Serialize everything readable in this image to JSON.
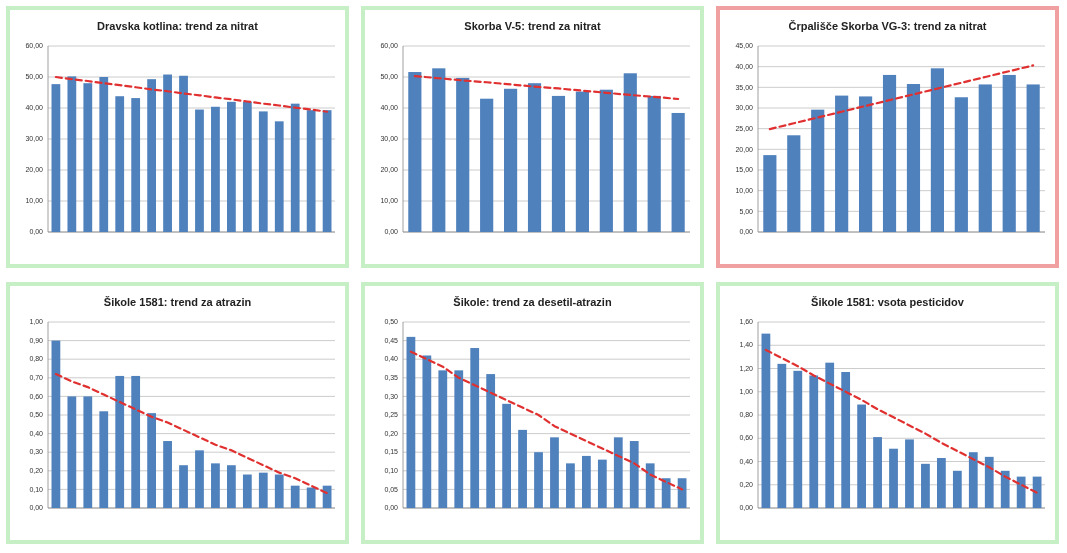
{
  "chart_data": [
    {
      "type": "bar",
      "title": "Dravska kotlina: trend za nitrat",
      "categories": [
        null,
        null,
        null,
        null,
        null,
        null,
        null,
        null,
        null,
        null,
        null,
        null,
        null,
        null,
        null,
        null,
        null,
        null
      ],
      "series": [
        {
          "color": "#4f81bd",
          "values": [
            47.7,
            50.2,
            48.0,
            50.0,
            43.8,
            43.2,
            49.3,
            50.8,
            50.4,
            39.5,
            40.4,
            42.0,
            42.0,
            38.9,
            35.7,
            41.4,
            39.3,
            39.3
          ]
        },
        {
          "type": "line",
          "color": "#e03030",
          "line_style": "dashed",
          "values": [
            50.0,
            49.3,
            48.7,
            48.0,
            47.4,
            46.7,
            46.0,
            45.4,
            44.7,
            44.1,
            43.4,
            42.8,
            42.1,
            41.4,
            40.8,
            40.1,
            39.5,
            38.8
          ]
        }
      ],
      "ylim": [
        0,
        60
      ],
      "yticks": [
        {
          "value": 0,
          "label": "0,00"
        },
        {
          "value": 10,
          "label": "10,00"
        },
        {
          "value": 20,
          "label": "20,00"
        },
        {
          "value": 30,
          "label": "30,00"
        },
        {
          "value": 40,
          "label": "40,00"
        },
        {
          "value": 50,
          "label": "50,00"
        },
        {
          "value": 60,
          "label": "60,00"
        }
      ],
      "grid": "y"
    },
    {
      "type": "bar",
      "title": "Skorba V-5: trend za nitrat",
      "categories": [
        null,
        null,
        null,
        null,
        null,
        null,
        null,
        null,
        null,
        null,
        null,
        null
      ],
      "series": [
        {
          "color": "#4f81bd",
          "values": [
            51.6,
            52.8,
            49.7,
            43.0,
            46.2,
            48.0,
            43.9,
            45.3,
            45.9,
            51.2,
            43.9,
            38.4
          ]
        },
        {
          "type": "line",
          "color": "#e03030",
          "line_style": "dashed",
          "values": [
            50.3,
            49.6,
            48.9,
            48.3,
            47.6,
            46.9,
            46.3,
            45.6,
            44.9,
            44.2,
            43.6,
            42.9
          ]
        }
      ],
      "ylim": [
        0,
        60
      ],
      "yticks": [
        {
          "value": 0,
          "label": "0,00"
        },
        {
          "value": 10,
          "label": "10,00"
        },
        {
          "value": 20,
          "label": "20,00"
        },
        {
          "value": 30,
          "label": "30,00"
        },
        {
          "value": 40,
          "label": "40,00"
        },
        {
          "value": 50,
          "label": "50,00"
        },
        {
          "value": 60,
          "label": "60,00"
        }
      ],
      "grid": "y"
    },
    {
      "type": "bar",
      "title": "Črpališče Skorba VG-3: trend za nitrat",
      "categories": [
        null,
        null,
        null,
        null,
        null,
        null,
        null,
        null,
        null,
        null,
        null,
        null
      ],
      "series": [
        {
          "color": "#4f81bd",
          "values": [
            18.6,
            23.4,
            29.6,
            33.0,
            32.8,
            38.0,
            35.8,
            39.6,
            32.6,
            35.7,
            38.0,
            35.7
          ]
        },
        {
          "type": "line",
          "color": "#e03030",
          "line_style": "dashed",
          "values": [
            24.9,
            26.3,
            27.7,
            29.1,
            30.5,
            31.9,
            33.3,
            34.7,
            36.1,
            37.5,
            38.9,
            40.3
          ]
        }
      ],
      "ylim": [
        0,
        45
      ],
      "yticks": [
        {
          "value": 0,
          "label": "0,00"
        },
        {
          "value": 5,
          "label": "5,00"
        },
        {
          "value": 10,
          "label": "10,00"
        },
        {
          "value": 15,
          "label": "15,00"
        },
        {
          "value": 20,
          "label": "20,00"
        },
        {
          "value": 25,
          "label": "25,00"
        },
        {
          "value": 30,
          "label": "30,00"
        },
        {
          "value": 35,
          "label": "35,00"
        },
        {
          "value": 40,
          "label": "40,00"
        },
        {
          "value": 45,
          "label": "45,00"
        }
      ],
      "grid": "y"
    },
    {
      "type": "bar",
      "title": "Šikole 1581: trend za atrazin",
      "categories": [
        null,
        null,
        null,
        null,
        null,
        null,
        null,
        null,
        null,
        null,
        null,
        null,
        null,
        null,
        null,
        null,
        null,
        null
      ],
      "series": [
        {
          "color": "#4f81bd",
          "values": [
            0.9,
            0.6,
            0.6,
            0.52,
            0.71,
            0.71,
            0.51,
            0.36,
            0.23,
            0.31,
            0.24,
            0.23,
            0.18,
            0.19,
            0.18,
            0.12,
            0.11,
            0.12
          ]
        },
        {
          "type": "line",
          "color": "#e03030",
          "line_style": "dashed",
          "values": [
            0.72,
            0.68,
            0.65,
            0.61,
            0.57,
            0.53,
            0.49,
            0.46,
            0.42,
            0.38,
            0.34,
            0.31,
            0.27,
            0.23,
            0.19,
            0.16,
            0.12,
            0.08
          ]
        }
      ],
      "ylim": [
        0,
        1
      ],
      "yticks": [
        {
          "value": 0,
          "label": "0,00"
        },
        {
          "value": 0.1,
          "label": "0,10"
        },
        {
          "value": 0.2,
          "label": "0,20"
        },
        {
          "value": 0.3,
          "label": "0,30"
        },
        {
          "value": 0.4,
          "label": "0,40"
        },
        {
          "value": 0.5,
          "label": "0,50"
        },
        {
          "value": 0.6,
          "label": "0,60"
        },
        {
          "value": 0.7,
          "label": "0,70"
        },
        {
          "value": 0.8,
          "label": "0,80"
        },
        {
          "value": 0.9,
          "label": "0,90"
        },
        {
          "value": 1,
          "label": "1,00"
        }
      ],
      "grid": "y"
    },
    {
      "type": "bar",
      "title": "Šikole: trend za desetil-atrazin",
      "categories": [
        null,
        null,
        null,
        null,
        null,
        null,
        null,
        null,
        null,
        null,
        null,
        null,
        null,
        null,
        null,
        null,
        null,
        null
      ],
      "series": [
        {
          "color": "#4f81bd",
          "values": [
            0.46,
            0.41,
            0.37,
            0.37,
            0.43,
            0.36,
            0.28,
            0.21,
            0.15,
            0.19,
            0.12,
            0.14,
            0.13,
            0.19,
            0.18,
            0.12,
            0.08,
            0.08
          ]
        },
        {
          "type": "line",
          "color": "#e03030",
          "line_style": "dashed",
          "values": [
            0.42,
            0.4,
            0.38,
            0.35,
            0.33,
            0.31,
            0.29,
            0.27,
            0.25,
            0.22,
            0.2,
            0.18,
            0.16,
            0.14,
            0.12,
            0.09,
            0.07,
            0.05
          ]
        }
      ],
      "ylim": [
        0,
        0.5
      ],
      "yticks": [
        {
          "value": 0,
          "label": "0,00"
        },
        {
          "value": 0.05,
          "label": "0,05"
        },
        {
          "value": 0.1,
          "label": "0,10"
        },
        {
          "value": 0.15,
          "label": "0,15"
        },
        {
          "value": 0.2,
          "label": "0,20"
        },
        {
          "value": 0.25,
          "label": "0,25"
        },
        {
          "value": 0.3,
          "label": "0,30"
        },
        {
          "value": 0.35,
          "label": "0,35"
        },
        {
          "value": 0.4,
          "label": "0,40"
        },
        {
          "value": 0.45,
          "label": "0,45"
        },
        {
          "value": 0.5,
          "label": "0,50"
        }
      ],
      "grid": "y"
    },
    {
      "type": "bar",
      "title": "Šikole 1581: vsota pesticidov",
      "categories": [
        null,
        null,
        null,
        null,
        null,
        null,
        null,
        null,
        null,
        null,
        null,
        null,
        null,
        null,
        null,
        null,
        null,
        null
      ],
      "series": [
        {
          "color": "#4f81bd",
          "values": [
            1.5,
            1.24,
            1.18,
            1.14,
            1.25,
            1.17,
            0.89,
            0.61,
            0.51,
            0.59,
            0.38,
            0.43,
            0.32,
            0.48,
            0.44,
            0.32,
            0.27,
            0.27
          ]
        },
        {
          "type": "line",
          "color": "#e03030",
          "line_style": "dashed",
          "values": [
            1.36,
            1.29,
            1.22,
            1.14,
            1.07,
            1.0,
            0.93,
            0.85,
            0.78,
            0.71,
            0.64,
            0.56,
            0.49,
            0.42,
            0.35,
            0.27,
            0.2,
            0.13
          ]
        }
      ],
      "ylim": [
        0,
        1.6
      ],
      "yticks": [
        {
          "value": 0,
          "label": "0,00"
        },
        {
          "value": 0.2,
          "label": "0,20"
        },
        {
          "value": 0.4,
          "label": "0,40"
        },
        {
          "value": 0.6,
          "label": "0,60"
        },
        {
          "value": 0.8,
          "label": "0,80"
        },
        {
          "value": 1,
          "label": "1,00"
        },
        {
          "value": 1.2,
          "label": "1,20"
        },
        {
          "value": 1.4,
          "label": "1,40"
        },
        {
          "value": 1.6,
          "label": "1,60"
        }
      ],
      "grid": "y"
    }
  ]
}
